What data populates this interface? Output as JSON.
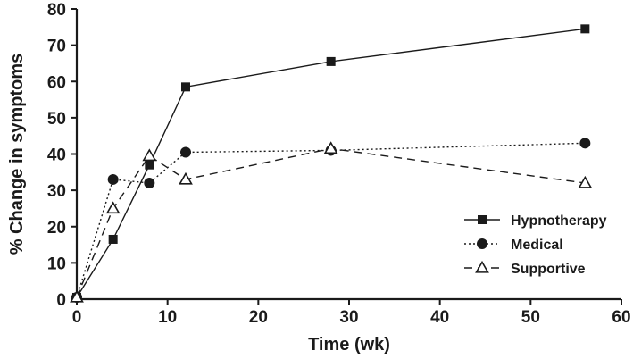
{
  "chart_data": {
    "type": "line",
    "title": "",
    "xlabel": "Time (wk)",
    "ylabel": "% Change in symptoms",
    "xlim": [
      0,
      60
    ],
    "ylim": [
      0,
      80
    ],
    "xticks": [
      0,
      10,
      20,
      30,
      40,
      50,
      60
    ],
    "yticks": [
      0,
      10,
      20,
      30,
      40,
      50,
      60,
      70,
      80
    ],
    "xtick_labels": [
      "0",
      "10",
      "20",
      "30",
      "40",
      "50",
      "60"
    ],
    "ytick_labels": [
      "0",
      "10",
      "20",
      "30",
      "40",
      "50",
      "60",
      "70",
      "80"
    ],
    "grid": false,
    "legend_position": "bottom-right",
    "series": [
      {
        "name": "Hypnotherapy",
        "marker": "square-filled",
        "line_style": "solid",
        "x": [
          0,
          4,
          8,
          12,
          28,
          56
        ],
        "y": [
          0.5,
          16.5,
          37,
          58.5,
          65.5,
          74.5
        ]
      },
      {
        "name": "Medical",
        "marker": "circle-filled",
        "line_style": "dotted",
        "x": [
          0,
          4,
          8,
          12,
          28,
          56
        ],
        "y": [
          0.5,
          33,
          32,
          40.5,
          41,
          43
        ]
      },
      {
        "name": "Supportive",
        "marker": "triangle-open",
        "line_style": "dashed",
        "x": [
          0,
          4,
          8,
          12,
          28,
          56
        ],
        "y": [
          0.5,
          25,
          39.5,
          33,
          41.5,
          32
        ]
      }
    ],
    "colors": {
      "ink": "#1a1a1a",
      "background": "#ffffff"
    }
  }
}
